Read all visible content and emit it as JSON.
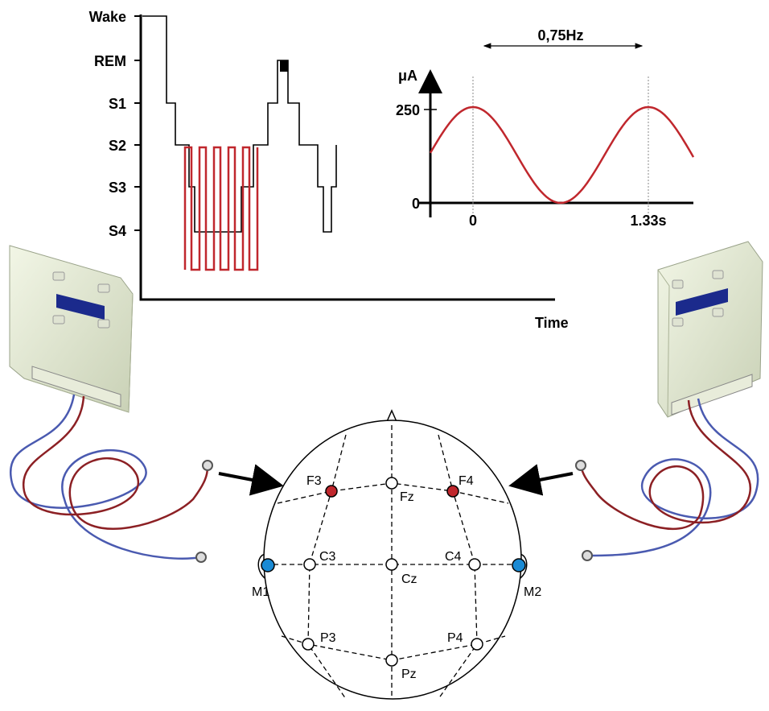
{
  "hypnogram": {
    "stages": [
      "Wake",
      "REM",
      "S1",
      "S2",
      "S3",
      "S4"
    ],
    "x_label": "Time"
  },
  "stimulation": {
    "frequency": "0,75Hz",
    "y_unit": "μA",
    "y_ticks": [
      "250",
      "0"
    ],
    "x_ticks": [
      "0",
      "1.33s"
    ]
  },
  "montage": {
    "electrodes": [
      "F3",
      "F4",
      "Fz",
      "C3",
      "C4",
      "Cz",
      "M1",
      "M2",
      "P3",
      "P4",
      "Pz"
    ]
  }
}
